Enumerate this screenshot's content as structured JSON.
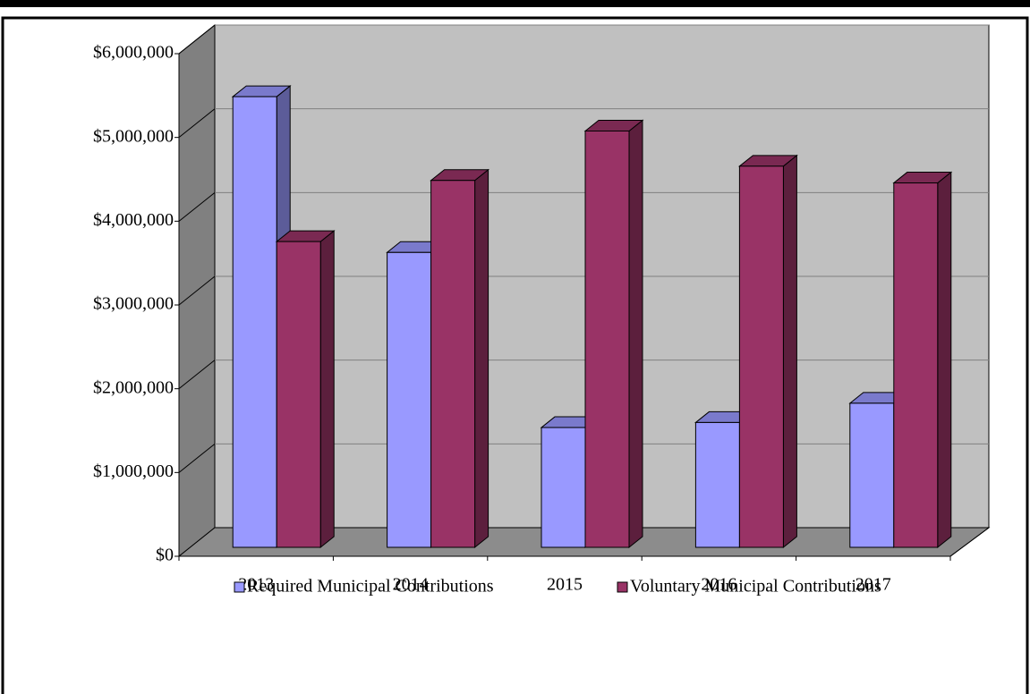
{
  "chart_data": {
    "type": "bar3d",
    "categories": [
      "2013",
      "2014",
      "2015",
      "2016",
      "2017"
    ],
    "series": [
      {
        "name": "Required Municipal Contributions",
        "color": "#9999ff",
        "values": [
          5380000,
          3520000,
          1430000,
          1490000,
          1720000
        ]
      },
      {
        "name": "Voluntary Municipal Contributions",
        "color": "#993366",
        "values": [
          3650000,
          4380000,
          4970000,
          4550000,
          4350000
        ]
      }
    ],
    "ylim": [
      0,
      6000000
    ],
    "yticks": [
      {
        "value": 0,
        "label": "$0"
      },
      {
        "value": 1000000,
        "label": "$1,000,000"
      },
      {
        "value": 2000000,
        "label": "$2,000,000"
      },
      {
        "value": 3000000,
        "label": "$3,000,000"
      },
      {
        "value": 4000000,
        "label": "$4,000,000"
      },
      {
        "value": 5000000,
        "label": "$5,000,000"
      },
      {
        "value": 6000000,
        "label": "$6,000,000"
      }
    ],
    "grid": true,
    "legend": "bottom"
  }
}
